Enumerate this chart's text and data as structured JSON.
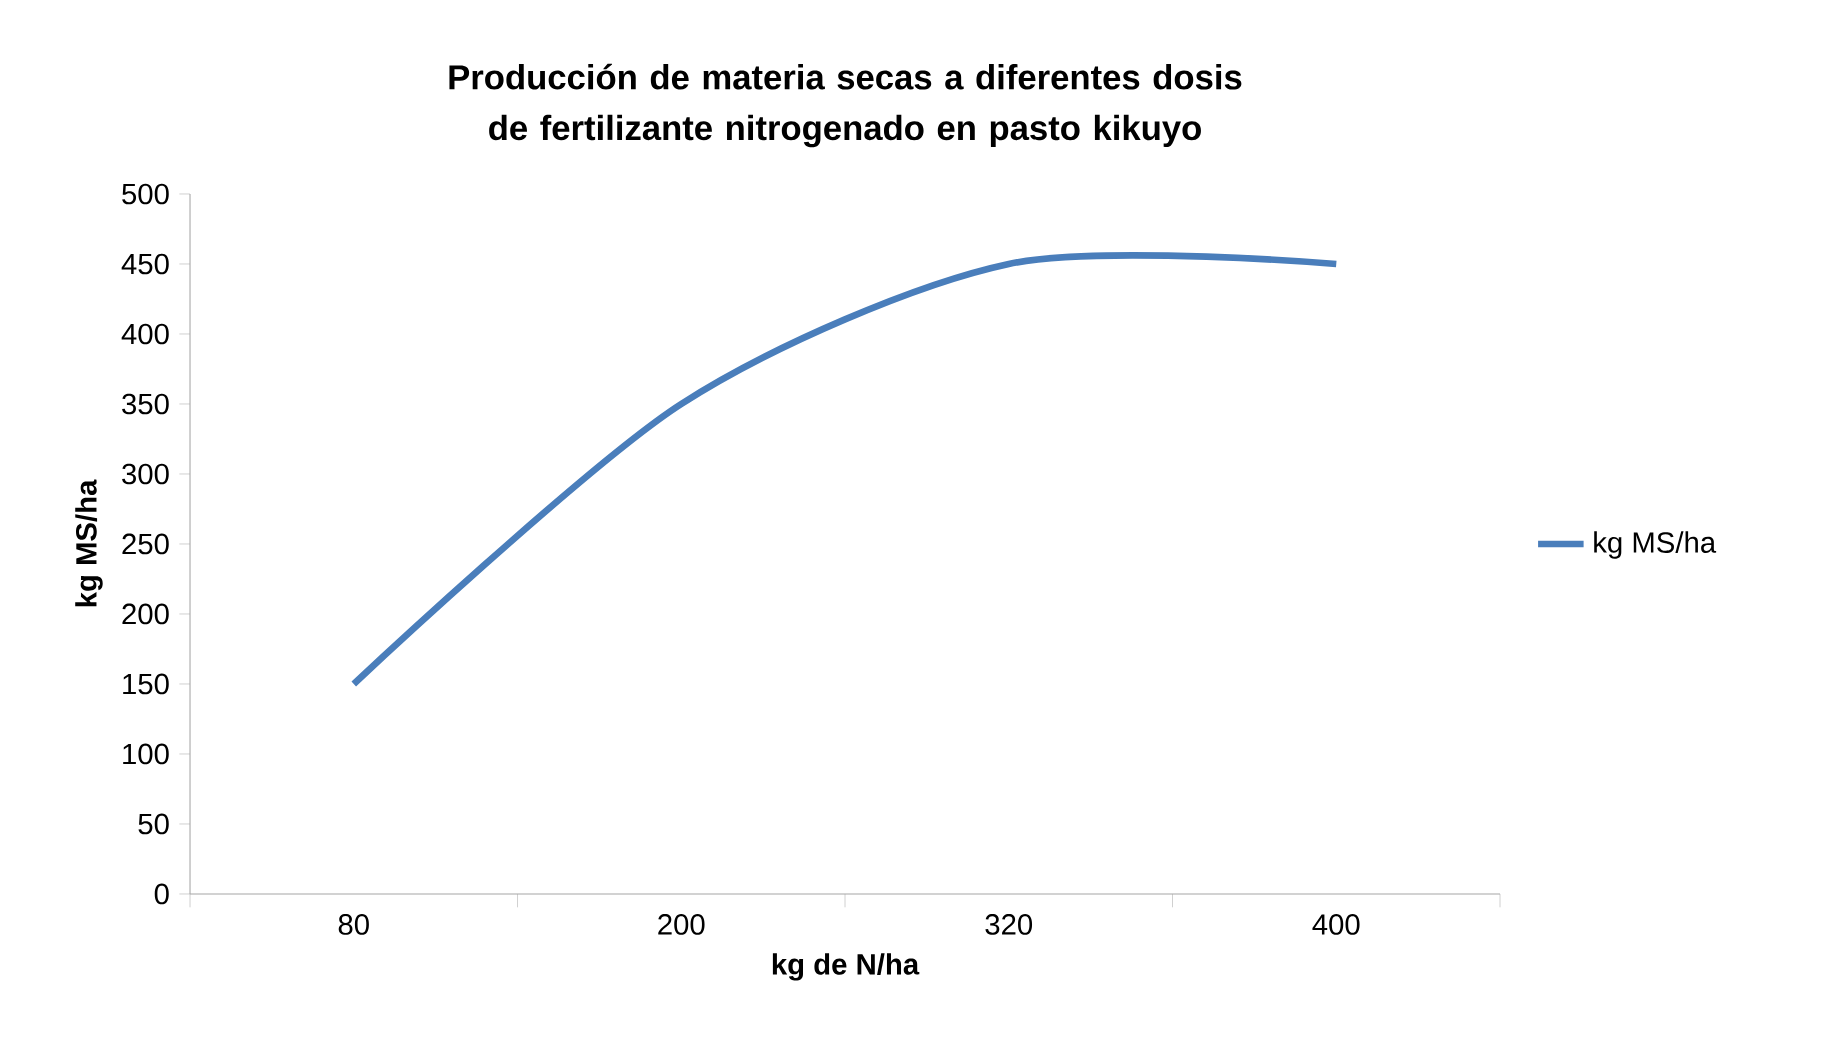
{
  "chart_data": {
    "type": "line",
    "title": "Producción de materia secas a diferentes dosis de fertilizante nitrogenado en pasto kikuyo",
    "xlabel": "kg de N/ha",
    "ylabel": "kg MS/ha",
    "categories": [
      "80",
      "200",
      "320",
      "400"
    ],
    "series": [
      {
        "name": "kg MS/ha",
        "color": "#4a7ebb",
        "values": [
          150,
          350,
          450,
          450
        ]
      }
    ],
    "ylim": [
      0,
      500
    ],
    "yticks": [
      0,
      50,
      100,
      150,
      200,
      250,
      300,
      350,
      400,
      450,
      500
    ],
    "legend": "right",
    "line_style": "solid"
  }
}
